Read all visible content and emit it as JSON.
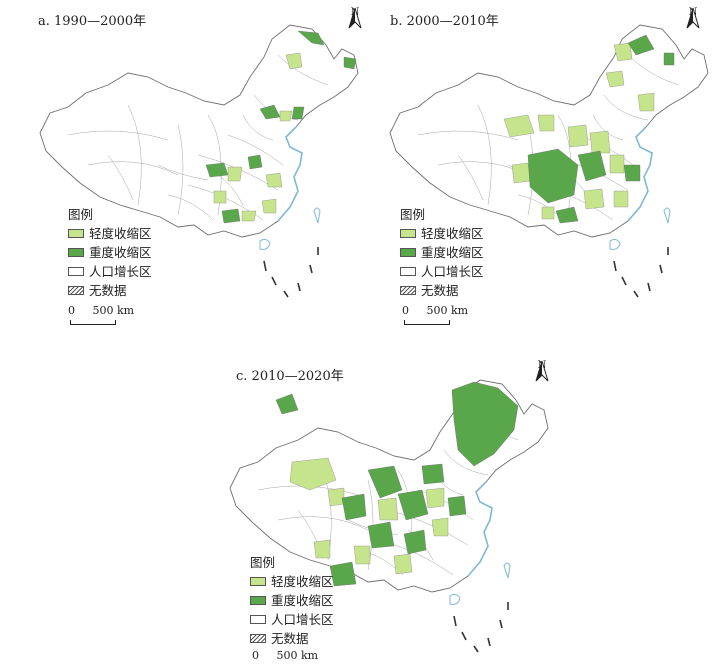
{
  "colors": {
    "light": "#c6e48b",
    "heavy": "#5aa64a",
    "growth": "#ffffff",
    "border": "#6e6e6e",
    "coast": "#7fb8d8"
  },
  "legend": {
    "title": "图例",
    "light": "轻度收缩区",
    "heavy": "重度收缩区",
    "growth": "人口增长区",
    "nodata": "无数据"
  },
  "scale": {
    "zero": "0",
    "distance": "500 km"
  },
  "north_label": "N",
  "panels": {
    "a": {
      "title": "a. 1990—2000年"
    },
    "b": {
      "title": "b. 2000—2010年"
    },
    "c": {
      "title": "c. 2010—2020年"
    }
  }
}
